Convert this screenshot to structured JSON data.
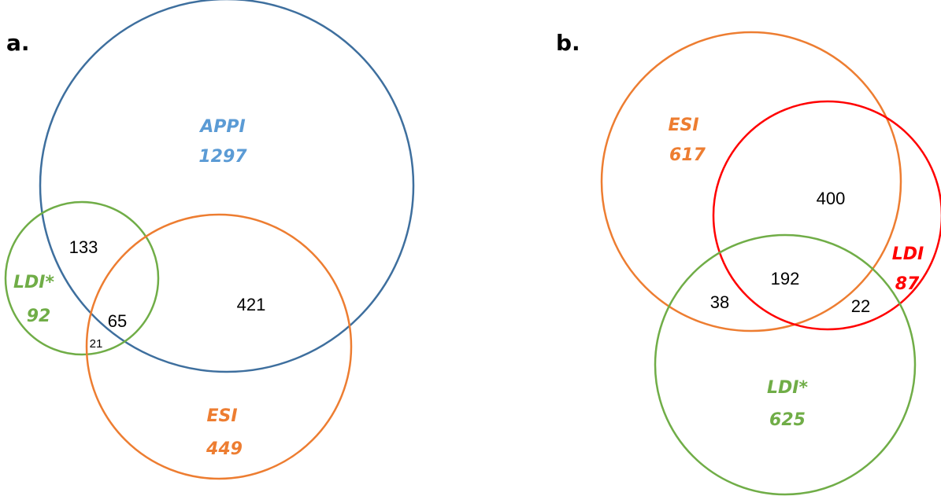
{
  "panel_a": {
    "label": "a.",
    "sets": {
      "appi": {
        "name": "APPI",
        "count": "1297",
        "color": "#3e6f9e",
        "label_color": "#5b9bd5"
      },
      "ldi_star": {
        "name": "LDI*",
        "count": "92",
        "color": "#70ad47",
        "label_color": "#70ad47"
      },
      "esi": {
        "name": "ESI",
        "count": "449",
        "color": "#ed7d31",
        "label_color": "#ed7d31"
      }
    },
    "intersections": {
      "appi_ldi_star": "133",
      "appi_ldi_star_esi": "65",
      "ldi_star_esi": "21",
      "appi_esi": "421"
    }
  },
  "panel_b": {
    "label": "b.",
    "sets": {
      "esi": {
        "name": "ESI",
        "count": "617",
        "color": "#ed7d31",
        "label_color": "#ed7d31"
      },
      "ldi": {
        "name": "LDI",
        "count": "87",
        "color": "#ff0000",
        "label_color": "#ff0000"
      },
      "ldi_star": {
        "name": "LDI*",
        "count": "625",
        "color": "#70ad47",
        "label_color": "#70ad47"
      }
    },
    "intersections": {
      "esi_ldi": "400",
      "esi_ldi_ldi_star": "192",
      "esi_ldi_star": "38",
      "ldi_ldi_star": "22"
    }
  }
}
